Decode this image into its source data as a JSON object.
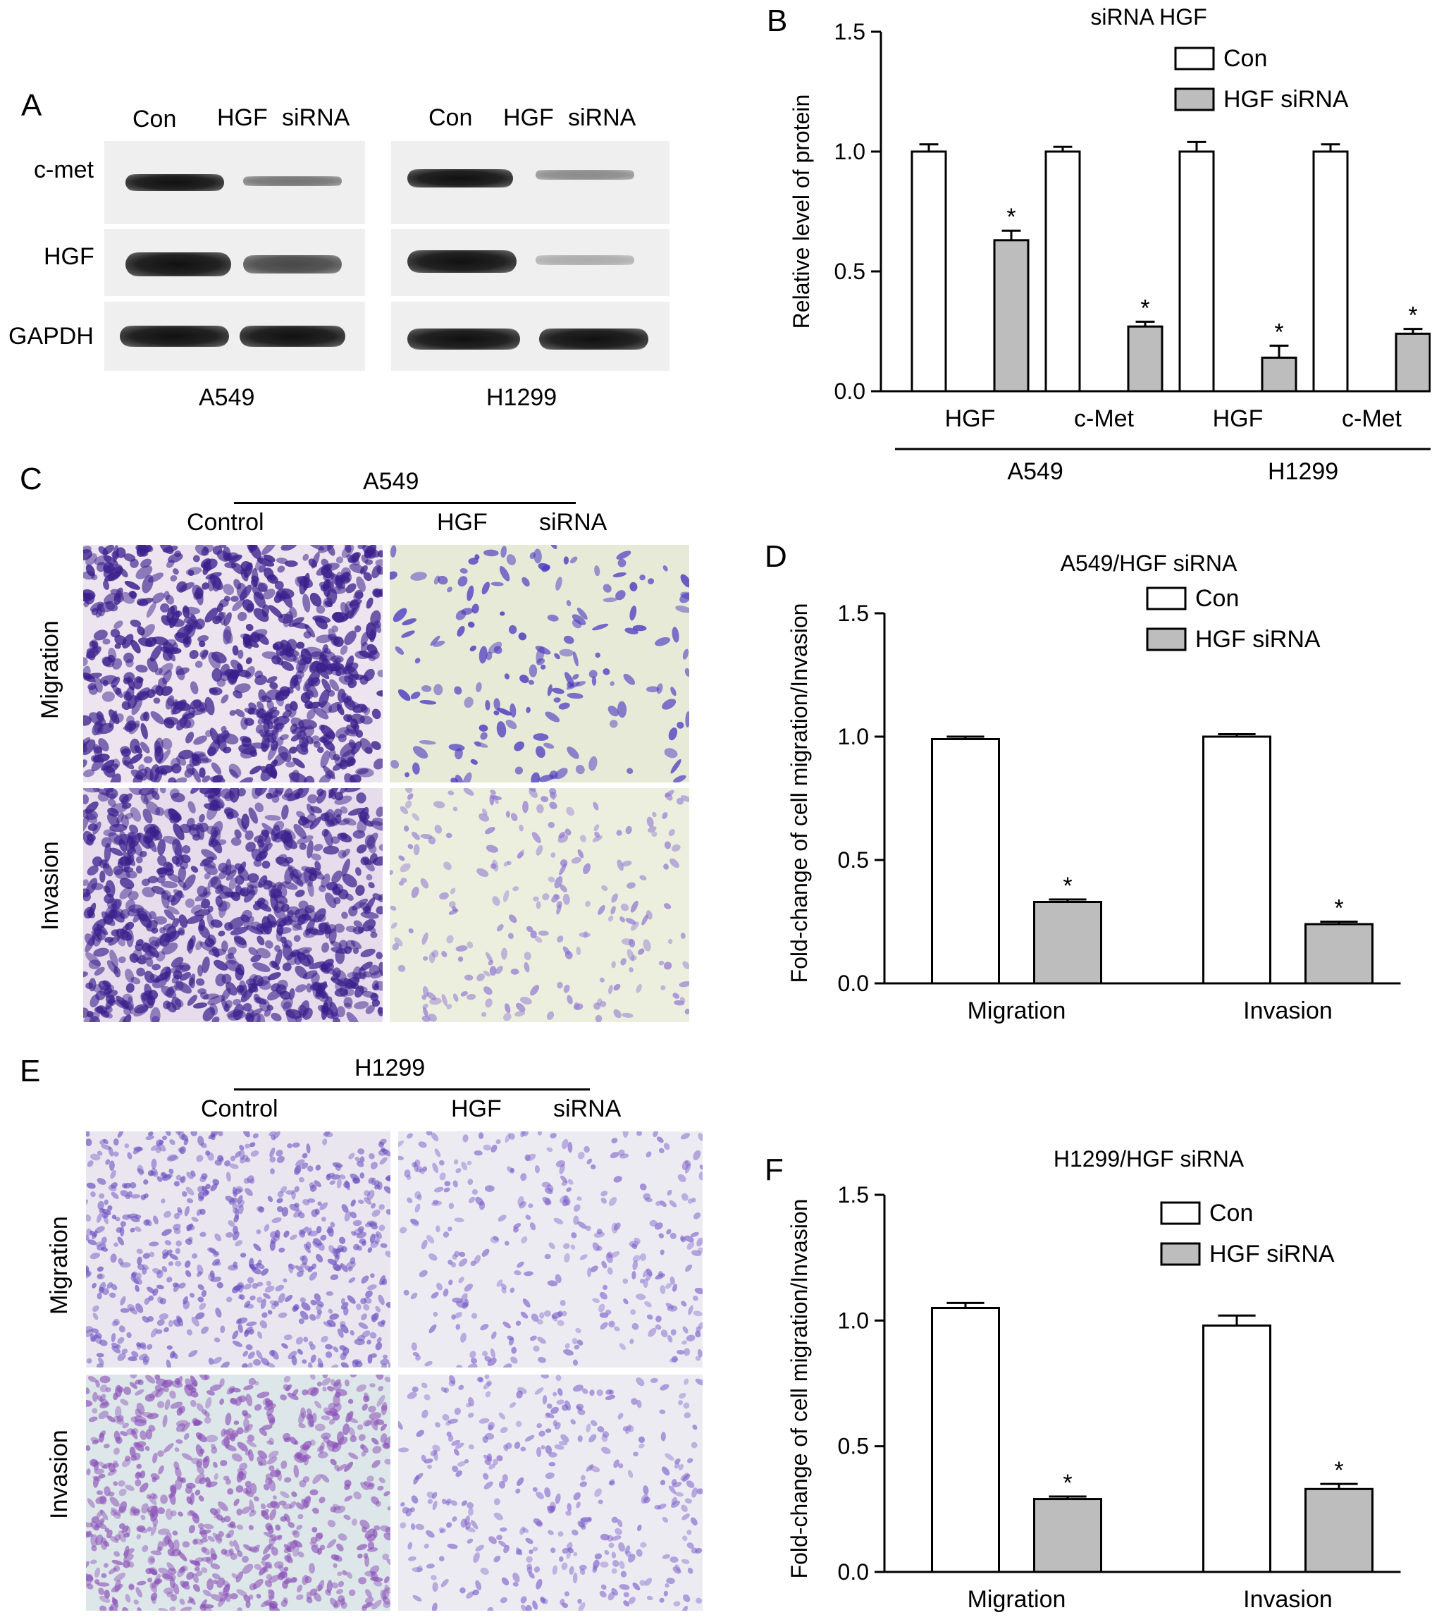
{
  "panels": {
    "A": "A",
    "B": "B",
    "C": "C",
    "D": "D",
    "E": "E",
    "F": "F"
  },
  "blotA": {
    "col_con": "Con",
    "col_hgf": "HGF",
    "col_sirna": "siRNA",
    "row_cmet": "c-met",
    "row_hgf": "HGF",
    "row_gapdh": "GAPDH",
    "cell_a549": "A549",
    "cell_h1299": "H1299"
  },
  "panelC": {
    "cell": "A549",
    "control": "Control",
    "hgf": "HGF",
    "sirna": "siRNA",
    "migration": "Migration",
    "invasion": "Invasion"
  },
  "panelE": {
    "cell": "H1299",
    "control": "Control",
    "hgf": "HGF",
    "sirna": "siRNA",
    "migration": "Migration",
    "invasion": "Invasion"
  },
  "colors": {
    "con": "#ffffff",
    "sirna": "#bdbdbd",
    "stain_dark": "#3a1f8c",
    "stain_light": "#8a6fd0"
  },
  "chart_data": [
    {
      "id": "B",
      "type": "bar",
      "title": "siRNA HGF",
      "ylabel": "Relative level of protein",
      "ylim": [
        0,
        1.5
      ],
      "yticks": [
        "0.0",
        "0.5",
        "1.0",
        "1.5"
      ],
      "categories": [
        "HGF",
        "c-Met",
        "HGF",
        "c-Met"
      ],
      "groups": [
        {
          "label": "A549"
        },
        {
          "label": "H1299"
        }
      ],
      "legend": [
        "Con",
        "HGF siRNA"
      ],
      "legend_position": "top-right",
      "series": [
        {
          "name": "Con",
          "values": [
            1.0,
            1.0,
            1.0,
            1.0
          ],
          "errors": [
            0.03,
            0.02,
            0.04,
            0.03
          ]
        },
        {
          "name": "HGF siRNA",
          "values": [
            0.63,
            0.27,
            0.14,
            0.24
          ],
          "errors": [
            0.04,
            0.02,
            0.05,
            0.02
          ],
          "marks": [
            "*",
            "*",
            "*",
            "*"
          ]
        }
      ]
    },
    {
      "id": "D",
      "type": "bar",
      "title": "A549/HGF siRNA",
      "ylabel": "Fold-change of cell migration/Invasion",
      "ylim": [
        0,
        1.5
      ],
      "yticks": [
        "0.0",
        "0.5",
        "1.0",
        "1.5"
      ],
      "categories": [
        "Migration",
        "Invasion"
      ],
      "legend": [
        "Con",
        "HGF siRNA"
      ],
      "legend_position": "top-right",
      "series": [
        {
          "name": "Con",
          "values": [
            0.99,
            1.0
          ],
          "errors": [
            0.01,
            0.01
          ]
        },
        {
          "name": "HGF siRNA",
          "values": [
            0.33,
            0.24
          ],
          "errors": [
            0.01,
            0.01
          ],
          "marks": [
            "*",
            "*"
          ]
        }
      ]
    },
    {
      "id": "F",
      "type": "bar",
      "title": "H1299/HGF siRNA",
      "ylabel": "Fold-change of cell migration/Invasion",
      "ylim": [
        0,
        1.5
      ],
      "yticks": [
        "0.0",
        "0.5",
        "1.0",
        "1.5"
      ],
      "categories": [
        "Migration",
        "Invasion"
      ],
      "legend": [
        "Con",
        "HGF siRNA"
      ],
      "legend_position": "top-right",
      "series": [
        {
          "name": "Con",
          "values": [
            1.05,
            0.98
          ],
          "errors": [
            0.02,
            0.04
          ]
        },
        {
          "name": "HGF siRNA",
          "values": [
            0.29,
            0.33
          ],
          "errors": [
            0.01,
            0.02
          ],
          "marks": [
            "*",
            "*"
          ]
        }
      ]
    }
  ]
}
